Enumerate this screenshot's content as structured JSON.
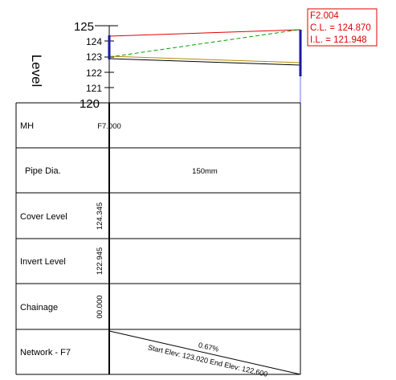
{
  "profile": {
    "level_label": "Level",
    "level_ticks": [
      "125",
      "124",
      "123",
      "122",
      "121",
      "120"
    ],
    "upstream_node": "F7.000",
    "downstream_node": {
      "name": "F2.004",
      "cover_level": "C.L. = 124.870",
      "invert_level": "I.L. = 121.948"
    }
  },
  "table": {
    "rows": [
      {
        "label": "MH",
        "value": ""
      },
      {
        "label": "Pipe Dia.",
        "value": "150mm"
      },
      {
        "label": "Cover Level",
        "value": "124.345"
      },
      {
        "label": "Invert Level",
        "value": "122.945"
      },
      {
        "label": "Chainage",
        "value": "00.000"
      },
      {
        "label": "Network - F7",
        "value": ""
      }
    ],
    "gradient": "0.67%",
    "elevations": "Start Elev: 123.020 End Elev: 122.600"
  },
  "colors": {
    "ground_line": "#e00000",
    "hgl_line": "#00a000",
    "pipe_line": "#b08a00",
    "manhole": "#1a1aa0"
  }
}
